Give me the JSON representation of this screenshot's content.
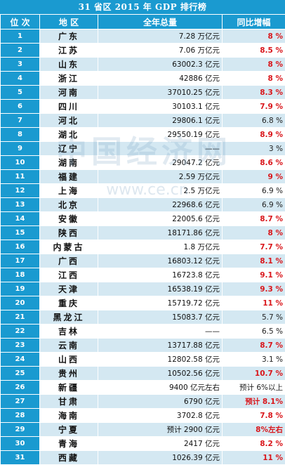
{
  "title": "31 省区 2015 年 GDP 排行榜",
  "headers": {
    "rank": "位 次",
    "region": "地 区",
    "gdp": "全年总量",
    "growth": "同比增幅"
  },
  "watermark": {
    "main": "中国经济网",
    "url": "www.ce.cn"
  },
  "colors": {
    "header_bg": "#1a9ad0",
    "stripe": "#d4e8f2",
    "highlight": "#d9161b"
  },
  "rows": [
    {
      "rank": "1",
      "region": "广东",
      "gdp": "7.28 万亿元",
      "growth": "8 %",
      "highlight": true
    },
    {
      "rank": "2",
      "region": "江苏",
      "gdp": "7.06 万亿元",
      "growth": "8.5 %",
      "highlight": true
    },
    {
      "rank": "3",
      "region": "山东",
      "gdp": "63002.3 亿元",
      "growth": "8 %",
      "highlight": true
    },
    {
      "rank": "4",
      "region": "浙江",
      "gdp": "42886 亿元",
      "growth": "8 %",
      "highlight": true
    },
    {
      "rank": "5",
      "region": "河南",
      "gdp": "37010.25 亿元",
      "growth": "8.3 %",
      "highlight": true
    },
    {
      "rank": "6",
      "region": "四川",
      "gdp": "30103.1 亿元",
      "growth": "7.9 %",
      "highlight": true
    },
    {
      "rank": "7",
      "region": "河北",
      "gdp": "29806.1 亿元",
      "growth": "6.8 %",
      "highlight": false
    },
    {
      "rank": "8",
      "region": "湖北",
      "gdp": "29550.19 亿元",
      "growth": "8.9 %",
      "highlight": true
    },
    {
      "rank": "9",
      "region": "辽宁",
      "gdp": "——",
      "growth": "3 %",
      "highlight": false
    },
    {
      "rank": "10",
      "region": "湖南",
      "gdp": "29047.2 亿元",
      "growth": "8.6 %",
      "highlight": true
    },
    {
      "rank": "11",
      "region": "福建",
      "gdp": "2.59 万亿元",
      "growth": "9 %",
      "highlight": true
    },
    {
      "rank": "12",
      "region": "上海",
      "gdp": "2.5 万亿元",
      "growth": "6.9 %",
      "highlight": false
    },
    {
      "rank": "13",
      "region": "北京",
      "gdp": "22968.6 亿元",
      "growth": "6.9 %",
      "highlight": false
    },
    {
      "rank": "14",
      "region": "安徽",
      "gdp": "22005.6 亿元",
      "growth": "8.7 %",
      "highlight": true
    },
    {
      "rank": "15",
      "region": "陕西",
      "gdp": "18171.86 亿元",
      "growth": "8 %",
      "highlight": true
    },
    {
      "rank": "16",
      "region": "内蒙古",
      "gdp": "1.8 万亿元",
      "growth": "7.7 %",
      "highlight": true
    },
    {
      "rank": "17",
      "region": "广西",
      "gdp": "16803.12 亿元",
      "growth": "8.1 %",
      "highlight": true
    },
    {
      "rank": "18",
      "region": "江西",
      "gdp": "16723.8 亿元",
      "growth": "9.1 %",
      "highlight": true
    },
    {
      "rank": "19",
      "region": "天津",
      "gdp": "16538.19 亿元",
      "growth": "9.3 %",
      "highlight": true
    },
    {
      "rank": "20",
      "region": "重庆",
      "gdp": "15719.72 亿元",
      "growth": "11 %",
      "highlight": true
    },
    {
      "rank": "21",
      "region": "黑龙江",
      "gdp": "15083.7 亿元",
      "growth": "5.7 %",
      "highlight": false
    },
    {
      "rank": "22",
      "region": "吉林",
      "gdp": "——",
      "growth": "6.5 %",
      "highlight": false
    },
    {
      "rank": "23",
      "region": "云南",
      "gdp": "13717.88 亿元",
      "growth": "8.7 %",
      "highlight": true
    },
    {
      "rank": "24",
      "region": "山西",
      "gdp": "12802.58 亿元",
      "growth": "3.1 %",
      "highlight": false
    },
    {
      "rank": "25",
      "region": "贵州",
      "gdp": "10502.56 亿元",
      "growth": "10.7 %",
      "highlight": true
    },
    {
      "rank": "26",
      "region": "新疆",
      "gdp": "9400 亿元左右",
      "growth": "预计 6%以上",
      "highlight": false
    },
    {
      "rank": "27",
      "region": "甘肃",
      "gdp": "6790 亿元",
      "growth": "预计 8.1%",
      "highlight": true
    },
    {
      "rank": "28",
      "region": "海南",
      "gdp": "3702.8 亿元",
      "growth": "7.8 %",
      "highlight": true
    },
    {
      "rank": "29",
      "region": "宁夏",
      "gdp": "预计 2900 亿元",
      "growth": "8%左右",
      "highlight": true
    },
    {
      "rank": "30",
      "region": "青海",
      "gdp": "2417 亿元",
      "growth": "8.2 %",
      "highlight": true
    },
    {
      "rank": "31",
      "region": "西藏",
      "gdp": "1026.39 亿元",
      "growth": "11 %",
      "highlight": true
    }
  ]
}
